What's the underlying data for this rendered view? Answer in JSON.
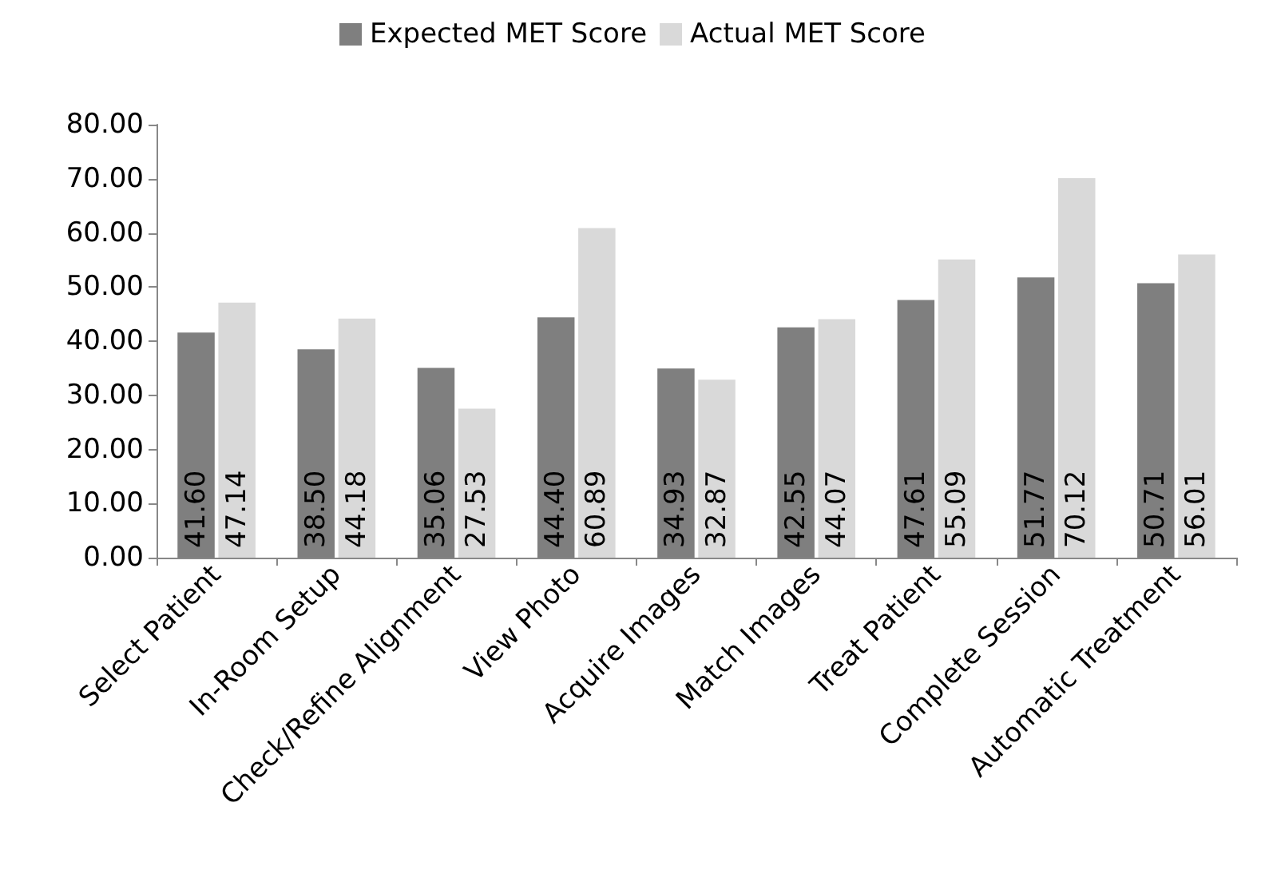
{
  "chart_data": {
    "type": "bar",
    "categories": [
      "Select Patient",
      "In-Room Setup",
      "Check/Refine Alignment",
      "View Photo",
      "Acquire Images",
      "Match Images",
      "Treat Patient",
      "Complete Session",
      "Automatic Treatment"
    ],
    "series": [
      {
        "name": "Expected MET Score",
        "color": "#7f7f7f",
        "values": [
          41.6,
          38.5,
          35.06,
          44.4,
          34.93,
          42.55,
          47.61,
          51.77,
          50.71
        ],
        "value_labels": [
          "41.60",
          "38.50",
          "35.06",
          "44.40",
          "34.93",
          "42.55",
          "47.61",
          "51.77",
          "50.71"
        ]
      },
      {
        "name": "Actual MET Score",
        "color": "#d9d9d9",
        "values": [
          47.14,
          44.18,
          27.53,
          60.89,
          32.87,
          44.07,
          55.09,
          70.12,
          56.01
        ],
        "value_labels": [
          "47.14",
          "44.18",
          "27.53",
          "60.89",
          "32.87",
          "44.07",
          "55.09",
          "70.12",
          "56.01"
        ]
      }
    ],
    "ylim": [
      0,
      80
    ],
    "yticks": [
      {
        "value": 0,
        "label": "0.00"
      },
      {
        "value": 10,
        "label": "10.00"
      },
      {
        "value": 20,
        "label": "20.00"
      },
      {
        "value": 30,
        "label": "30.00"
      },
      {
        "value": 40,
        "label": "40.00"
      },
      {
        "value": 50,
        "label": "50.00"
      },
      {
        "value": 60,
        "label": "60.00"
      },
      {
        "value": 70,
        "label": "70.00"
      },
      {
        "value": 80,
        "label": "80.00"
      }
    ],
    "grid": false,
    "legend": "top"
  }
}
